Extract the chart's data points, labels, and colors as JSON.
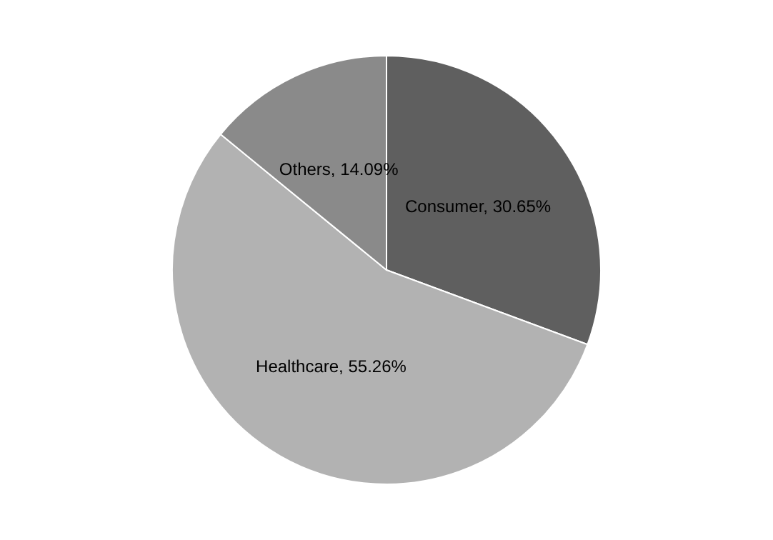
{
  "chart_data": {
    "type": "pie",
    "categories": [
      "Consumer",
      "Healthcare",
      "Others"
    ],
    "values": [
      30.65,
      55.26,
      14.09
    ],
    "value_labels": [
      "30.65%",
      "55.26%",
      "14.09%"
    ],
    "colors": [
      "#5f5f5f",
      "#b2b2b2",
      "#8a8a8a"
    ],
    "legend": false
  }
}
